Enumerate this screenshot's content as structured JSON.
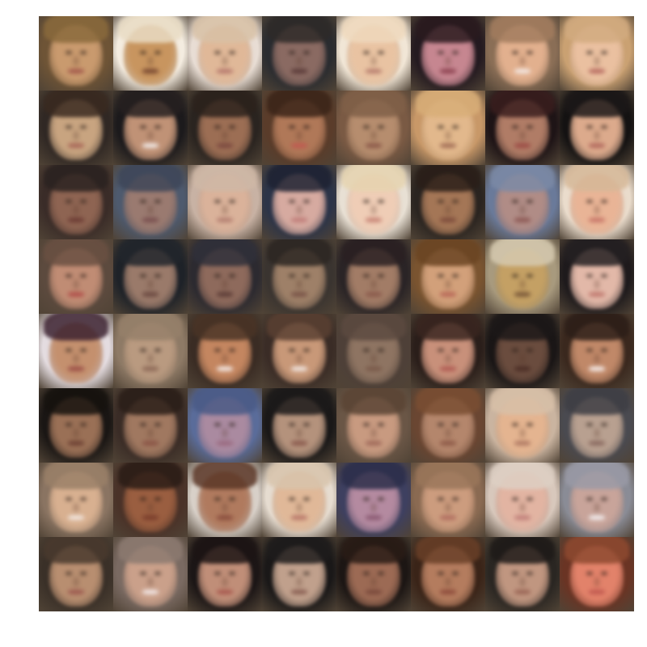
{
  "image": {
    "grid": {
      "rows": 8,
      "cols": 8
    },
    "background_color": "#ffffff",
    "tiles": [
      {
        "bg": "#6e5436",
        "skin": "#c99a6e",
        "hair": "#8a6a3c",
        "mouth": "#a35a4c"
      },
      {
        "bg": "#f4ece0",
        "skin": "#c8955f",
        "hair": "#e9dcc4",
        "mouth": "#7a4a32"
      },
      {
        "bg": "#e8ddd4",
        "skin": "#e0b898",
        "hair": "#d8c1a6",
        "mouth": "#b67a6e"
      },
      {
        "bg": "#2a2c30",
        "skin": "#8a6a62",
        "hair": "#2e2a28",
        "mouth": "#5c3c3a"
      },
      {
        "bg": "#f1e6d6",
        "skin": "#e9c3a2",
        "hair": "#efd9bd",
        "mouth": "#b98070"
      },
      {
        "bg": "#241a20",
        "skin": "#c68690",
        "hair": "#2a1a1e",
        "mouth": "#8e4452"
      },
      {
        "bg": "#8a6e56",
        "skin": "#e2b08e",
        "hair": "#a27c5e",
        "mouth": "#f2e6e0"
      },
      {
        "bg": "#caa172",
        "skin": "#eac0a0",
        "hair": "#d2ab80",
        "mouth": "#b86d62"
      },
      {
        "bg": "#302824",
        "skin": "#c8a480",
        "hair": "#3a2a20",
        "mouth": "#a86858"
      },
      {
        "bg": "#1c1a1c",
        "skin": "#c09276",
        "hair": "#262020",
        "mouth": "#efe6e2"
      },
      {
        "bg": "#2a2420",
        "skin": "#9c6e54",
        "hair": "#2c221c",
        "mouth": "#7c4a40"
      },
      {
        "bg": "#5a3c2a",
        "skin": "#b07858",
        "hair": "#3a2418",
        "mouth": "#c05a50"
      },
      {
        "bg": "#7a5a44",
        "skin": "#b68d6e",
        "hair": "#806048",
        "mouth": "#8c5a4a"
      },
      {
        "bg": "#c89868",
        "skin": "#e2b88c",
        "hair": "#d8ae78",
        "mouth": "#a47058"
      },
      {
        "bg": "#1e1416",
        "skin": "#b07c66",
        "hair": "#3a1e1e",
        "mouth": "#9c4c46"
      },
      {
        "bg": "#141212",
        "skin": "#dcaa8c",
        "hair": "#1c1818",
        "mouth": "#b26a5e"
      },
      {
        "bg": "#3a2c28",
        "skin": "#8e6452",
        "hair": "#2a2220",
        "mouth": "#6c3c34"
      },
      {
        "bg": "#4e5a6e",
        "skin": "#9a7a70",
        "hair": "#3e4658",
        "mouth": "#7a5050"
      },
      {
        "bg": "#c8b2a4",
        "skin": "#dab29a",
        "hair": "#cfb8a6",
        "mouth": "#b48072"
      },
      {
        "bg": "#2c3448",
        "skin": "#d6aaa0",
        "hair": "#1e2232",
        "mouth": "#c07e7a"
      },
      {
        "bg": "#e8e0d4",
        "skin": "#efcdb6",
        "hair": "#e6d4b0",
        "mouth": "#c88678"
      },
      {
        "bg": "#2a2420",
        "skin": "#a47656",
        "hair": "#2a1e18",
        "mouth": "#7e4c3c"
      },
      {
        "bg": "#6a7a9a",
        "skin": "#b08c86",
        "hair": "#7c8aa6",
        "mouth": "#8e5a56"
      },
      {
        "bg": "#eadccc",
        "skin": "#e9b496",
        "hair": "#d6b898",
        "mouth": "#c8786a"
      },
      {
        "bg": "#5c4a3e",
        "skin": "#c08c74",
        "hair": "#6a5042",
        "mouth": "#b0504a"
      },
      {
        "bg": "#1e2228",
        "skin": "#9a7a6a",
        "hair": "#22262c",
        "mouth": "#6c4a42"
      },
      {
        "bg": "#2c2a30",
        "skin": "#8e6a5c",
        "hair": "#30303a",
        "mouth": "#5e3e38"
      },
      {
        "bg": "#3a3430",
        "skin": "#9e8068",
        "hair": "#2c2622",
        "mouth": "#7a5448"
      },
      {
        "bg": "#2a2426",
        "skin": "#a27c66",
        "hair": "#2a2022",
        "mouth": "#8a5a4c"
      },
      {
        "bg": "#7a5430",
        "skin": "#d2a07a",
        "hair": "#6a4422",
        "mouth": "#b86858"
      },
      {
        "bg": "#a89a7e",
        "skin": "#c4a064",
        "hair": "#d6cab0",
        "mouth": "#7c5a3a"
      },
      {
        "bg": "#1e1a1c",
        "skin": "#e2b8a8",
        "hair": "#242022",
        "mouth": "#c07a70"
      },
      {
        "bg": "#e4dce0",
        "skin": "#c4906e",
        "hair": "#3c2230",
        "mouth": "#9c5048"
      },
      {
        "bg": "#8e7a66",
        "skin": "#b99a80",
        "hair": "#96806a",
        "mouth": "#8e6a58"
      },
      {
        "bg": "#3a2c24",
        "skin": "#c48660",
        "hair": "#4a3426",
        "mouth": "#f0e4de"
      },
      {
        "bg": "#3a2c26",
        "skin": "#c89878",
        "hair": "#5a4032",
        "mouth": "#eee2dc"
      },
      {
        "bg": "#4e4038",
        "skin": "#8e7462",
        "hair": "#5c4a40",
        "mouth": "#7a5a4a"
      },
      {
        "bg": "#2a1e1a",
        "skin": "#c8907a",
        "hair": "#3a2620",
        "mouth": "#b05c54"
      },
      {
        "bg": "#1a1616",
        "skin": "#6a4c3e",
        "hair": "#1c1818",
        "mouth": "#4c2e26"
      },
      {
        "bg": "#3a281e",
        "skin": "#c08868",
        "hair": "#2c1e18",
        "mouth": "#f2e8e4"
      },
      {
        "bg": "#1a1614",
        "skin": "#9a7056",
        "hair": "#16120e",
        "mouth": "#6e4234"
      },
      {
        "bg": "#3a2c26",
        "skin": "#a07860",
        "hair": "#2a1e18",
        "mouth": "#8a5446"
      },
      {
        "bg": "#5a6c9a",
        "skin": "#aa8aa0",
        "hair": "#4a5a86",
        "mouth": "#9a6a80"
      },
      {
        "bg": "#1a1818",
        "skin": "#b4927c",
        "hair": "#1c1a1a",
        "mouth": "#8a5a4e"
      },
      {
        "bg": "#6a5646",
        "skin": "#c89a80",
        "hair": "#5a4434",
        "mouth": "#a06a5a"
      },
      {
        "bg": "#6a4632",
        "skin": "#b4866c",
        "hair": "#7a4e32",
        "mouth": "#8e5a48"
      },
      {
        "bg": "#cab4a0",
        "skin": "#e4b490",
        "hair": "#d8c0a8",
        "mouth": "#b07a64"
      },
      {
        "bg": "#4a4a50",
        "skin": "#b8a090",
        "hair": "#3e3e44",
        "mouth": "#8a6a60"
      },
      {
        "bg": "#8a7462",
        "skin": "#d8b090",
        "hair": "#9a8068",
        "mouth": "#f0e4dc"
      },
      {
        "bg": "#4a3228",
        "skin": "#9a5e40",
        "hair": "#2a1c16",
        "mouth": "#7a3e2c"
      },
      {
        "bg": "#d8d0c8",
        "skin": "#b07a5e",
        "hair": "#5a3626",
        "mouth": "#8a4e3e"
      },
      {
        "bg": "#e6dcd0",
        "skin": "#e0b898",
        "hair": "#d8c4ac",
        "mouth": "#b8786a"
      },
      {
        "bg": "#3e4060",
        "skin": "#b48aa0",
        "hair": "#2c2e4a",
        "mouth": "#8a5a72"
      },
      {
        "bg": "#8a6a52",
        "skin": "#cc9c7e",
        "hair": "#9a765a",
        "mouth": "#b06e60"
      },
      {
        "bg": "#d8c8bc",
        "skin": "#e2b4a2",
        "hair": "#ded0c4",
        "mouth": "#c0807a"
      },
      {
        "bg": "#8a8c96",
        "skin": "#c8a49a",
        "hair": "#9a9aa6",
        "mouth": "#f0eaea"
      },
      {
        "bg": "#3a3028",
        "skin": "#b88e70",
        "hair": "#4a3a2e",
        "mouth": "#9c5a50"
      },
      {
        "bg": "#7a6a62",
        "skin": "#caa08a",
        "hair": "#8c7a70",
        "mouth": "#f0e4e2"
      },
      {
        "bg": "#1c1616",
        "skin": "#c08e78",
        "hair": "#1c1414",
        "mouth": "#a85a50"
      },
      {
        "bg": "#1a1818",
        "skin": "#c0a08c",
        "hair": "#1e1c1c",
        "mouth": "#8a6054"
      },
      {
        "bg": "#1c1614",
        "skin": "#9c6a54",
        "hair": "#2a1c16",
        "mouth": "#7a4a3c"
      },
      {
        "bg": "#3a2418",
        "skin": "#b47c5e",
        "hair": "#6a4028",
        "mouth": "#8e4c3c"
      },
      {
        "bg": "#2a2622",
        "skin": "#c09680",
        "hair": "#1e1a18",
        "mouth": "#9a6656"
      },
      {
        "bg": "#6a3424",
        "skin": "#e2826a",
        "hair": "#8e4a30",
        "mouth": "#c05a50"
      }
    ]
  }
}
